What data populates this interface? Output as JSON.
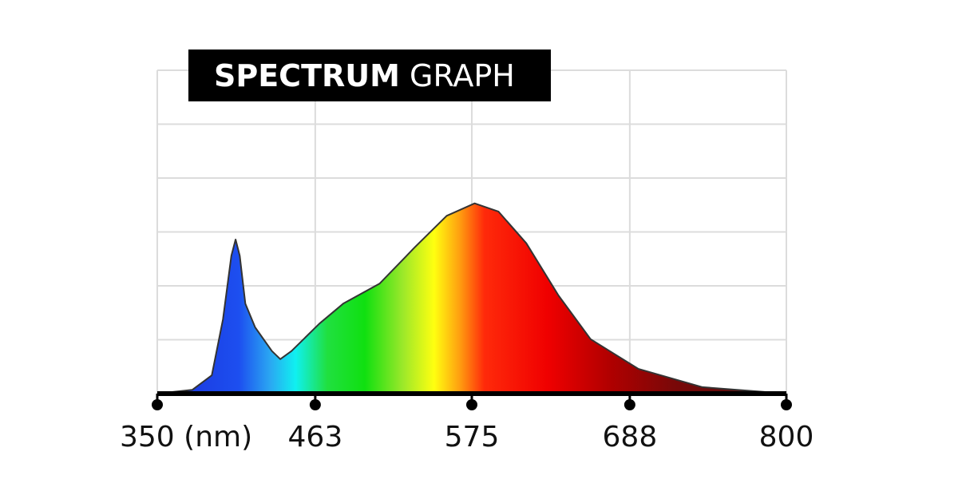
{
  "chart_data": {
    "type": "area",
    "title": [
      "SPECTRUM",
      "GRAPH"
    ],
    "x": [
      350,
      375,
      389,
      397,
      403,
      406,
      409,
      413,
      420,
      432,
      438,
      446,
      466,
      483,
      509,
      534,
      557,
      577,
      594,
      614,
      637,
      660,
      694,
      740,
      800
    ],
    "values": [
      0,
      0.07,
      0.34,
      1.38,
      2.56,
      2.86,
      2.56,
      1.67,
      1.23,
      0.79,
      0.64,
      0.79,
      1.3,
      1.67,
      2.04,
      2.71,
      3.3,
      3.53,
      3.38,
      2.79,
      1.82,
      1.01,
      0.46,
      0.12,
      0
    ],
    "xlim": [
      350,
      800
    ],
    "xticks": [
      {
        "value": 350,
        "label": "350 (nm)"
      },
      463,
      575,
      688,
      800
    ],
    "ylim": [
      0,
      6
    ],
    "yticks": [
      0,
      1,
      2,
      3,
      4,
      5,
      6
    ],
    "grid": true
  }
}
